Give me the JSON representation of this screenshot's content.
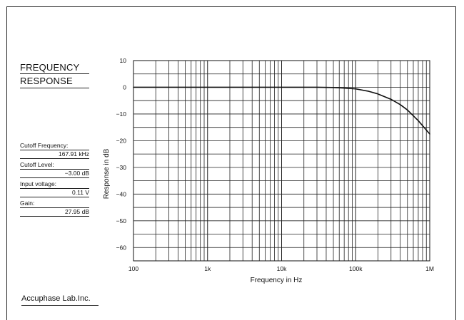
{
  "panel": {
    "title_line1": "FREQUENCY",
    "title_line2": "RESPONSE",
    "specs": [
      {
        "label": "Cutoff Frequency:",
        "value": "167.91 kHz"
      },
      {
        "label": "Cutoff Level:",
        "value": "−3.00 dB"
      },
      {
        "label": "Input voltage:",
        "value": "0.11 V"
      },
      {
        "label": "Gain:",
        "value": "27.95 dB"
      }
    ],
    "brand": "Accuphase Lab.Inc."
  },
  "chart_data": {
    "type": "line",
    "title": "",
    "xlabel": "Frequency in Hz",
    "ylabel": "Response in dB",
    "xscale": "log",
    "xlim": [
      100,
      1000000
    ],
    "ylim": [
      -65,
      10
    ],
    "grid": true,
    "xticks": [
      {
        "value": 100,
        "label": "100"
      },
      {
        "value": 1000,
        "label": "1k"
      },
      {
        "value": 10000,
        "label": "10k"
      },
      {
        "value": 100000,
        "label": "100k"
      },
      {
        "value": 1000000,
        "label": "1M"
      }
    ],
    "yticks": [
      {
        "value": 10,
        "label": "10"
      },
      {
        "value": 0,
        "label": "0"
      },
      {
        "value": -10,
        "label": "−10"
      },
      {
        "value": -20,
        "label": "−20"
      },
      {
        "value": -30,
        "label": "−30"
      },
      {
        "value": -40,
        "label": "−40"
      },
      {
        "value": -50,
        "label": "−50"
      },
      {
        "value": -60,
        "label": "−60"
      }
    ],
    "series": [
      {
        "x": [
          100,
          1000,
          10000,
          30000,
          50000,
          70000,
          100000,
          150000,
          200000,
          300000,
          400000,
          500000,
          700000,
          1000000
        ],
        "y": [
          0,
          0,
          0,
          0,
          -0.1,
          -0.3,
          -0.6,
          -1.5,
          -2.5,
          -4.5,
          -6.5,
          -8.5,
          -12.5,
          -17.5
        ]
      }
    ],
    "line_color": "#111111"
  }
}
